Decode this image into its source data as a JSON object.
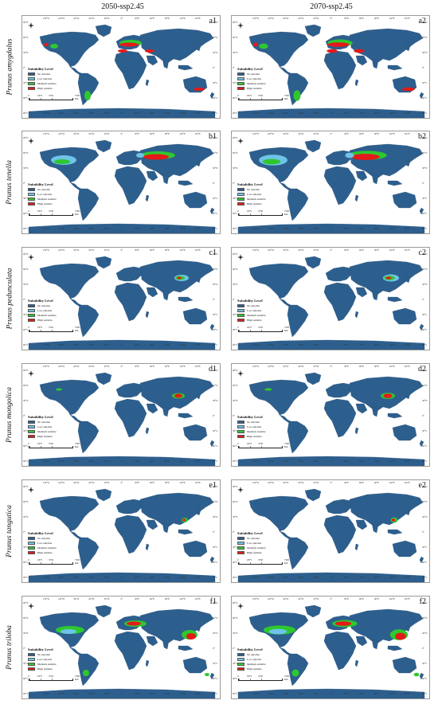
{
  "columns": [
    "2050-ssp2.45",
    "2070-ssp2.45"
  ],
  "species": [
    "Prunus amygdalus",
    "Prunus tenella",
    "Prunus pedunculata",
    "Prunus mongolica",
    "Prunus tangutica",
    "Prunus triloba"
  ],
  "panel_labels": [
    [
      "a1",
      "a2"
    ],
    [
      "b1",
      "b2"
    ],
    [
      "c1",
      "c2"
    ],
    [
      "d1",
      "d2"
    ],
    [
      "e1",
      "e2"
    ],
    [
      "f1",
      "f2"
    ]
  ],
  "longitude_ticks": [
    "150°W",
    "120°W",
    "90°W",
    "60°W",
    "30°W",
    "0°",
    "30°E",
    "60°E",
    "90°E",
    "120°E",
    "150°E"
  ],
  "latitude_ticks": [
    "90°N",
    "60°N",
    "30°N",
    "0°",
    "30°S",
    "60°S",
    "90°S"
  ],
  "legend": {
    "title": "Suitability Level",
    "items": [
      {
        "label": "No suitable",
        "color": "#2d5f8e"
      },
      {
        "label": "Low suitable",
        "color": "#6ec4e8"
      },
      {
        "label": "Medium suitable",
        "color": "#2ec82e"
      },
      {
        "label": "High suitable",
        "color": "#e41a1a"
      }
    ]
  },
  "scale_bar": {
    "ticks": [
      "0",
      "1875",
      "3750",
      "7500 Km"
    ]
  },
  "colors": {
    "ocean": "#ffffff",
    "land": "#2d5f8e",
    "low": "#6ec4e8",
    "medium": "#2ec82e",
    "high": "#e41a1a"
  }
}
